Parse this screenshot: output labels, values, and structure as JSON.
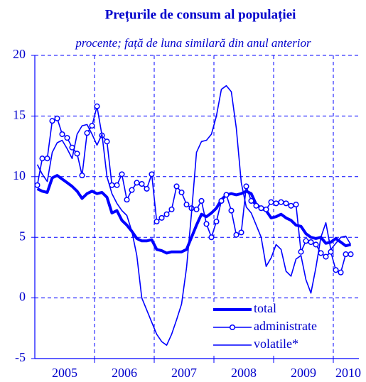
{
  "chart_data": {
    "type": "line",
    "title": "Prețurile de consum al populației",
    "subtitle": "procente; față de luna similară din anul anterior",
    "categories": [
      null,
      null,
      null,
      null,
      null,
      "2005",
      null,
      null,
      null,
      null,
      null,
      null,
      null,
      null,
      null,
      null,
      null,
      "2006",
      null,
      null,
      null,
      null,
      null,
      null,
      null,
      null,
      null,
      null,
      null,
      "2007",
      null,
      null,
      null,
      null,
      null,
      null,
      null,
      null,
      null,
      null,
      null,
      "2008",
      null,
      null,
      null,
      null,
      null,
      null,
      null,
      null,
      null,
      null,
      null,
      "2009",
      null,
      null,
      null,
      null,
      null,
      null,
      null,
      null,
      "2010",
      null
    ],
    "ylim": [
      -5,
      20
    ],
    "yticks": [
      -5,
      0,
      5,
      10,
      15,
      20
    ],
    "grid": true,
    "legend": "lower right",
    "series": [
      {
        "name": "total",
        "color": "#0000ff",
        "line_width": 4,
        "marker": "none",
        "values": [
          9.0,
          8.8,
          8.7,
          9.9,
          10.1,
          9.8,
          9.5,
          9.2,
          8.8,
          8.2,
          8.6,
          8.8,
          8.6,
          8.7,
          8.3,
          7.0,
          7.2,
          6.4,
          6.0,
          5.5,
          4.9,
          4.7,
          4.7,
          4.8,
          4.0,
          3.9,
          3.7,
          3.8,
          3.8,
          3.8,
          4.0,
          5.0,
          6.0,
          6.9,
          6.7,
          7.0,
          7.4,
          8.1,
          8.5,
          8.6,
          8.5,
          8.6,
          8.8,
          8.6,
          7.7,
          7.4,
          7.2,
          6.6,
          6.7,
          6.9,
          6.6,
          6.4,
          6.0,
          5.9,
          5.3,
          5.0,
          4.9,
          5.0,
          4.5,
          4.6,
          4.9,
          4.6,
          4.3,
          4.4
        ]
      },
      {
        "name": "administrate",
        "color": "#0000ff",
        "line_width": 1.6,
        "marker": "circle",
        "values": [
          9.3,
          11.5,
          11.5,
          14.6,
          14.8,
          13.5,
          13.2,
          12.4,
          11.9,
          10.1,
          13.6,
          14.2,
          15.8,
          13.4,
          12.9,
          9.3,
          9.3,
          10.2,
          8.1,
          8.9,
          9.5,
          9.4,
          9.0,
          10.2,
          6.3,
          6.6,
          6.9,
          7.3,
          9.2,
          8.7,
          7.7,
          7.4,
          7.3,
          8.0,
          6.1,
          5.0,
          6.3,
          8.0,
          8.5,
          7.2,
          5.2,
          5.4,
          9.2,
          8.0,
          7.6,
          7.4,
          7.3,
          7.9,
          7.8,
          7.9,
          7.8,
          7.6,
          7.7,
          3.8,
          4.7,
          4.6,
          4.4,
          3.7,
          3.4,
          3.8,
          2.3,
          2.1,
          3.6,
          3.6
        ]
      },
      {
        "name": "volatile*",
        "color": "#0000ff",
        "line_width": 1.6,
        "marker": "none",
        "values": [
          11.0,
          10.2,
          9.6,
          12.0,
          12.8,
          13.0,
          12.3,
          11.5,
          13.5,
          14.2,
          14.3,
          13.5,
          12.6,
          13.5,
          10.0,
          8.6,
          7.8,
          7.2,
          6.8,
          5.5,
          3.5,
          0.0,
          -1.0,
          -2.0,
          -3.0,
          -3.6,
          -3.9,
          -3.0,
          -1.8,
          -0.5,
          2.5,
          7.0,
          12.0,
          12.9,
          13.0,
          13.5,
          15.0,
          17.2,
          17.5,
          17.0,
          14.0,
          9.5,
          7.5,
          7.0,
          6.0,
          5.0,
          2.6,
          3.3,
          4.4,
          4.0,
          2.2,
          1.8,
          3.2,
          3.5,
          1.5,
          0.4,
          2.5,
          5.0,
          6.2,
          4.0,
          4.5,
          5.0,
          5.1,
          4.4
        ]
      }
    ]
  }
}
